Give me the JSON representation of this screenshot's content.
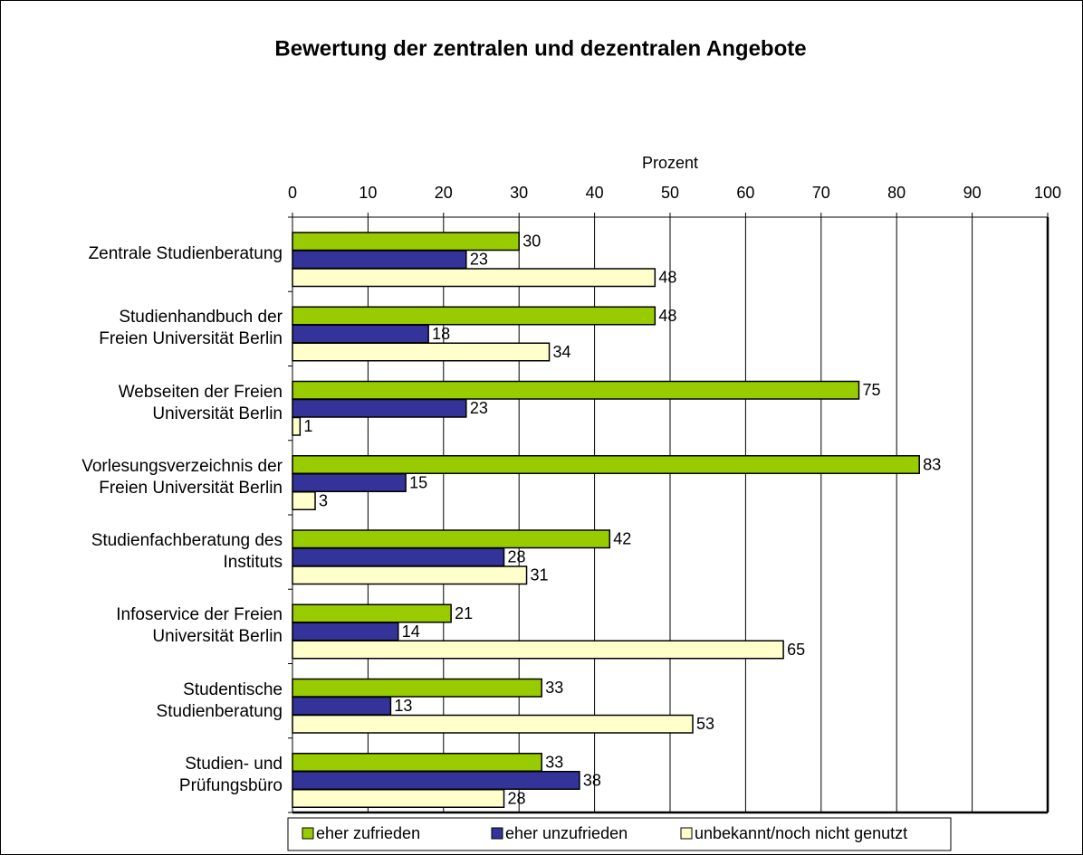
{
  "chart_data": {
    "type": "hbar",
    "title": "Bewertung der zentralen und dezentralen Angebote",
    "x_label": "Prozent",
    "categories": [
      "Zentrale Studienberatung",
      "Studienhandbuch der\nFreien Universität Berlin",
      "Webseiten der Freien\nUniversität Berlin",
      "Vorlesungsverzeichnis der\nFreien Universität Berlin",
      "Studienfachberatung des\nInstituts",
      "Infoservice der Freien\nUniversität Berlin",
      "Studentische\nStudienberatung",
      "Studien- und\nPrüfungsbüro"
    ],
    "series": [
      {
        "name": "eher zufrieden",
        "color": "#99cc00",
        "values": [
          30,
          48,
          75,
          83,
          42,
          21,
          33,
          33
        ]
      },
      {
        "name": "eher unzufrieden",
        "color": "#333399",
        "values": [
          23,
          18,
          23,
          15,
          28,
          14,
          13,
          38
        ]
      },
      {
        "name": "unbekannt/noch nicht genutzt",
        "color": "#ffffcc",
        "values": [
          48,
          34,
          1,
          3,
          31,
          65,
          53,
          28
        ]
      }
    ],
    "xlim": [
      0,
      100
    ],
    "xticks": [
      0,
      10,
      20,
      30,
      40,
      50,
      60,
      70,
      80,
      90,
      100
    ],
    "grid": true,
    "legend": "bottom"
  }
}
